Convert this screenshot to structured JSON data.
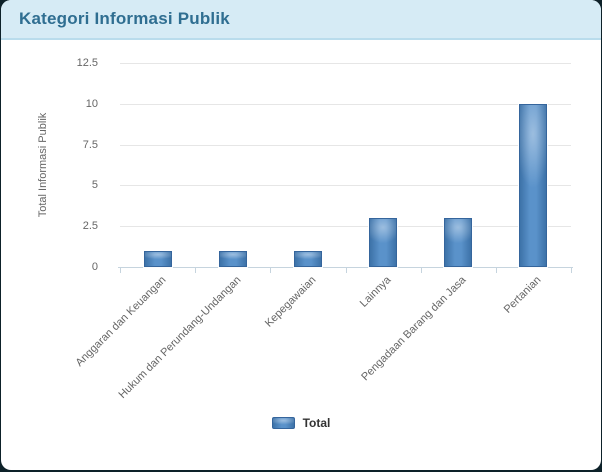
{
  "page": {
    "background_color": "#0d2129",
    "card_color": "#ffffff"
  },
  "header": {
    "title": "Kategori Informasi Publik",
    "background_color": "#d6ebf5",
    "border_color": "#b9dcec",
    "text_color": "#2f6e91"
  },
  "chart_data": {
    "type": "bar",
    "title": "Kategori Informasi Publik",
    "categories": [
      "Anggaran dan Keuangan",
      "Hukum dan Perundang-Undangan",
      "Kepegawaian",
      "Lainnya",
      "Pengadaan Barang dan Jasa",
      "Pertanian"
    ],
    "series": [
      {
        "name": "Total",
        "values": [
          1,
          1,
          1,
          3,
          3,
          10
        ]
      }
    ],
    "xlabel": "",
    "ylabel": "Total Informasi Publik",
    "ylim": [
      0,
      12.5
    ],
    "yticks": [
      0,
      2.5,
      5,
      7.5,
      10,
      12.5
    ],
    "grid": true,
    "legend_position": "bottom",
    "bar_color_light": "#5a92ca",
    "bar_color_dark": "#3d72a8",
    "gridline_color": "#e6e6e6",
    "axis_line_color": "#c6d4de",
    "axis_text_color": "#666666"
  },
  "legend": {
    "label": "Total"
  }
}
